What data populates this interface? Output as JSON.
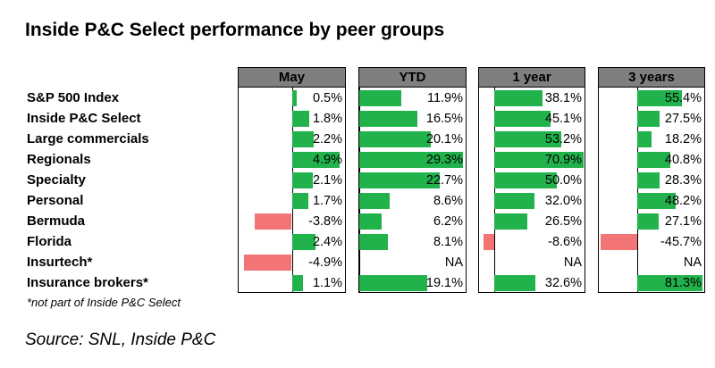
{
  "chart_data": {
    "type": "bar",
    "title": "Inside P&C Select performance by peer groups",
    "categories": [
      "S&P 500 Index",
      "Inside P&C Select",
      "Large commercials",
      "Regionals",
      "Specialty",
      "Personal",
      "Bermuda",
      "Florida",
      "Insurtech*",
      "Insurance brokers*"
    ],
    "series": [
      {
        "name": "May",
        "values": [
          0.5,
          1.8,
          2.2,
          4.9,
          2.1,
          1.7,
          -3.8,
          2.4,
          -4.9,
          1.1
        ],
        "labels": [
          "0.5%",
          "1.8%",
          "2.2%",
          "4.9%",
          "2.1%",
          "1.7%",
          "-3.8%",
          "2.4%",
          "-4.9%",
          "1.1%"
        ],
        "range": [
          -5.5,
          5.5
        ]
      },
      {
        "name": "YTD",
        "values": [
          11.9,
          16.5,
          20.1,
          29.3,
          22.7,
          8.6,
          6.2,
          8.1,
          null,
          19.1
        ],
        "labels": [
          "11.9%",
          "16.5%",
          "20.1%",
          "29.3%",
          "22.7%",
          "8.6%",
          "6.2%",
          "8.1%",
          "NA",
          "19.1%"
        ],
        "range": [
          0,
          30
        ]
      },
      {
        "name": "1 year",
        "values": [
          38.1,
          45.1,
          53.2,
          70.9,
          50.0,
          32.0,
          26.5,
          -8.6,
          null,
          32.6
        ],
        "labels": [
          "38.1%",
          "45.1%",
          "53.2%",
          "70.9%",
          "50.0%",
          "32.0%",
          "26.5%",
          "-8.6%",
          "NA",
          "32.6%"
        ],
        "range": [
          -12,
          72
        ]
      },
      {
        "name": "3 years",
        "values": [
          55.4,
          27.5,
          18.2,
          40.8,
          28.3,
          48.2,
          27.1,
          -45.7,
          null,
          81.3
        ],
        "labels": [
          "55.4%",
          "27.5%",
          "18.2%",
          "40.8%",
          "28.3%",
          "48.2%",
          "27.1%",
          "-45.7%",
          "NA",
          "81.3%"
        ],
        "range": [
          -48,
          83
        ]
      }
    ],
    "footnote": "*not part of Inside P&C Select",
    "source": "Source: SNL, Inside P&C"
  },
  "colors": {
    "positive": "#22b24c",
    "negative": "#f27474",
    "header": "#7f7f7f"
  }
}
